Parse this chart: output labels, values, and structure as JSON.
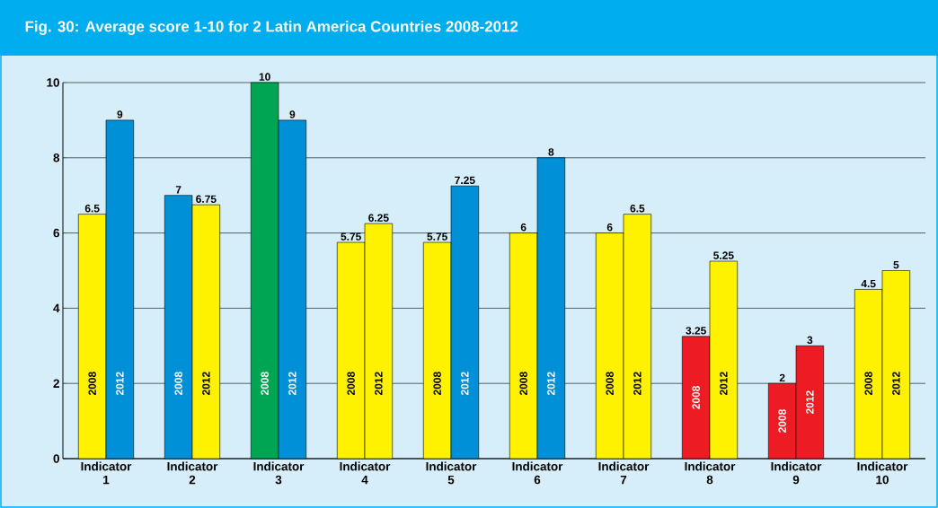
{
  "chart_data": {
    "type": "bar",
    "title": "Fig. 30: Average score 1-10 for 2 Latin America Countries 2008-2012",
    "categories": [
      "Indicator 1",
      "Indicator 2",
      "Indicator 3",
      "Indicator 4",
      "Indicator 5",
      "Indicator 6",
      "Indicator 7",
      "Indicator 8",
      "Indicator 9",
      "Indicator 10"
    ],
    "series": [
      {
        "name": "2008",
        "values": [
          6.5,
          7,
          10,
          5.75,
          5.75,
          6,
          6,
          3.25,
          2,
          4.5
        ],
        "colors": [
          "#fff200",
          "#0090d8",
          "#00a551",
          "#fff200",
          "#fff200",
          "#fff200",
          "#fff200",
          "#ed1c24",
          "#ed1c24",
          "#fff200"
        ]
      },
      {
        "name": "2012",
        "values": [
          9,
          6.75,
          9,
          6.25,
          7.25,
          8,
          6.5,
          5.25,
          3,
          5
        ],
        "colors": [
          "#0090d8",
          "#fff200",
          "#0090d8",
          "#fff200",
          "#0090d8",
          "#0090d8",
          "#fff200",
          "#fff200",
          "#ed1c24",
          "#fff200"
        ]
      }
    ],
    "ylim": [
      0,
      10
    ],
    "yticks": [
      0,
      2,
      4,
      6,
      8,
      10
    ],
    "grid": "y",
    "data_labels": true
  }
}
